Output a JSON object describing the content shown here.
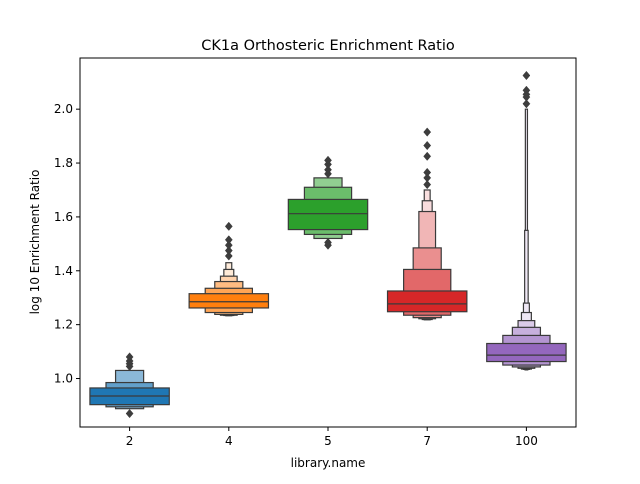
{
  "chart_data": {
    "type": "boxen",
    "title": "CK1a Orthosteric Enrichment Ratio",
    "xlabel": "library.name",
    "ylabel": "log 10 Enrichment Ratio",
    "ylim": [
      0.82,
      2.19
    ],
    "y_ticks": [
      1.0,
      1.2,
      1.4,
      1.6,
      1.8,
      2.0
    ],
    "y_tick_labels": [
      "1.0",
      "1.2",
      "1.4",
      "1.6",
      "1.8",
      "2.0"
    ],
    "grid": false,
    "categories": [
      "2",
      "4",
      "5",
      "7",
      "100"
    ],
    "series": [
      {
        "color": "#1f77b4",
        "median": 0.935,
        "levels": [
          [
            0.903,
            0.965
          ],
          [
            0.895,
            0.985
          ],
          [
            0.888,
            1.03
          ]
        ],
        "outliers": [
          1.045,
          1.055,
          1.065,
          1.08,
          0.87
        ]
      },
      {
        "color": "#ff7f0e",
        "median": 1.285,
        "levels": [
          [
            1.262,
            1.315
          ],
          [
            1.245,
            1.335
          ],
          [
            1.238,
            1.36
          ],
          [
            1.235,
            1.38
          ],
          [
            1.234,
            1.405
          ],
          [
            1.233,
            1.43
          ]
        ],
        "outliers": [
          1.455,
          1.475,
          1.495,
          1.515,
          1.565
        ]
      },
      {
        "color": "#2ca02c",
        "median": 1.612,
        "levels": [
          [
            1.553,
            1.665
          ],
          [
            1.535,
            1.71
          ],
          [
            1.52,
            1.745
          ]
        ],
        "outliers": [
          1.76,
          1.775,
          1.795,
          1.81,
          1.505,
          1.495
        ]
      },
      {
        "color": "#d62728",
        "median": 1.277,
        "levels": [
          [
            1.248,
            1.325
          ],
          [
            1.235,
            1.405
          ],
          [
            1.226,
            1.485
          ],
          [
            1.222,
            1.62
          ],
          [
            1.219,
            1.66
          ],
          [
            1.218,
            1.7
          ]
        ],
        "outliers": [
          1.72,
          1.745,
          1.765,
          1.825,
          1.865,
          1.915
        ]
      },
      {
        "color": "#9467bd",
        "median": 1.087,
        "levels": [
          [
            1.063,
            1.13
          ],
          [
            1.05,
            1.16
          ],
          [
            1.043,
            1.19
          ],
          [
            1.038,
            1.215
          ],
          [
            1.035,
            1.245
          ],
          [
            1.034,
            1.28
          ],
          [
            1.033,
            1.55
          ],
          [
            1.032,
            2.0
          ]
        ],
        "outliers": [
          2.02,
          2.045,
          2.055,
          2.07,
          2.125
        ]
      }
    ]
  }
}
